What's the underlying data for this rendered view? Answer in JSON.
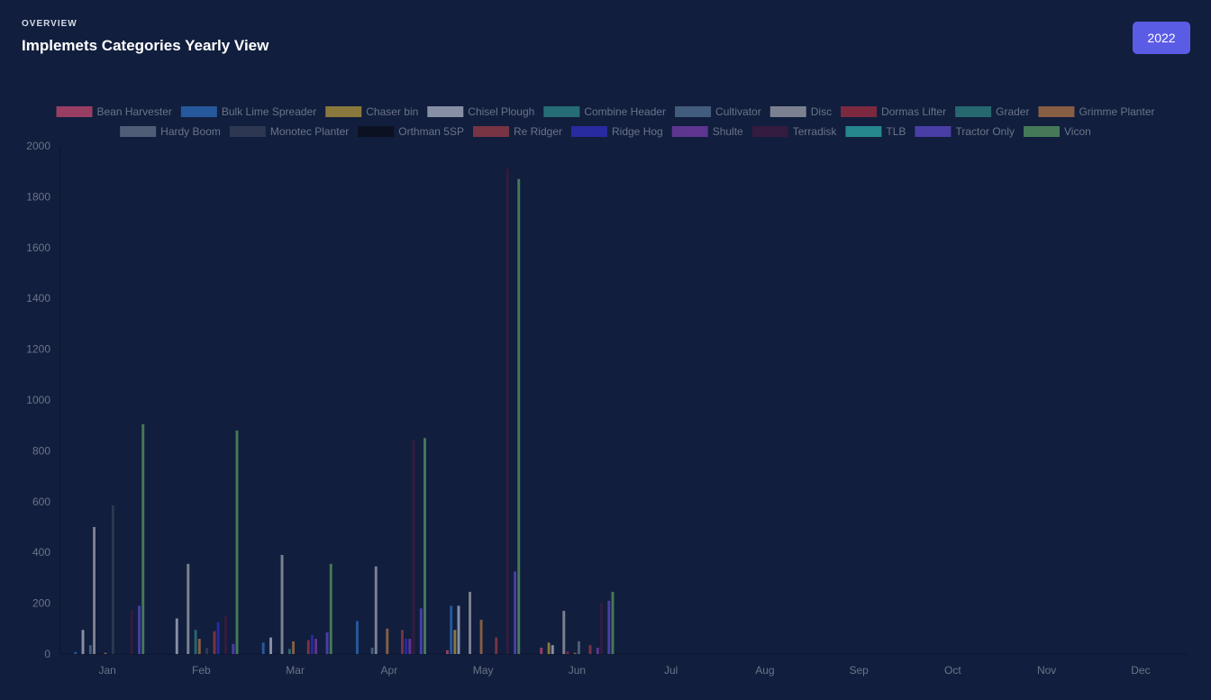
{
  "header": {
    "overline": "OVERVIEW",
    "title": "Implemets Categories Yearly View",
    "year_button": "2022"
  },
  "chart_data": {
    "type": "bar",
    "categories": [
      "Jan",
      "Feb",
      "Mar",
      "Apr",
      "May",
      "Jun",
      "Jul",
      "Aug",
      "Sep",
      "Oct",
      "Nov",
      "Dec"
    ],
    "ylim": [
      0,
      2000
    ],
    "yticks": [
      0,
      200,
      400,
      600,
      800,
      1000,
      1200,
      1400,
      1600,
      1800,
      2000
    ],
    "grid": false,
    "legend_position": "top",
    "series": [
      {
        "name": "Bean Harvester",
        "color": "#b0446a",
        "values": [
          0,
          0,
          0,
          0,
          15,
          25,
          0,
          0,
          0,
          0,
          0,
          0
        ]
      },
      {
        "name": "Bulk Lime Spreader",
        "color": "#2a63ad",
        "values": [
          8,
          0,
          45,
          130,
          190,
          0,
          0,
          0,
          0,
          0,
          0,
          0
        ]
      },
      {
        "name": "Chaser bin",
        "color": "#a08a3c",
        "values": [
          0,
          0,
          0,
          0,
          95,
          45,
          0,
          0,
          0,
          0,
          0,
          0
        ]
      },
      {
        "name": "Chisel Plough",
        "color": "#9ba3b7",
        "values": [
          95,
          140,
          65,
          0,
          190,
          35,
          0,
          0,
          0,
          0,
          0,
          0
        ]
      },
      {
        "name": "Combine Header",
        "color": "#2a7a80",
        "values": [
          0,
          0,
          0,
          0,
          0,
          0,
          0,
          0,
          0,
          0,
          0,
          0
        ]
      },
      {
        "name": "Cultivator",
        "color": "#4b6788",
        "values": [
          35,
          0,
          0,
          25,
          0,
          0,
          0,
          0,
          0,
          0,
          0,
          0
        ]
      },
      {
        "name": "Disc",
        "color": "#8f93a0",
        "values": [
          500,
          355,
          390,
          345,
          245,
          170,
          0,
          0,
          0,
          0,
          0,
          0
        ]
      },
      {
        "name": "Dormas Lifter",
        "color": "#8f2c40",
        "values": [
          0,
          0,
          0,
          0,
          0,
          10,
          0,
          0,
          0,
          0,
          0,
          0
        ]
      },
      {
        "name": "Grader",
        "color": "#2b7478",
        "values": [
          0,
          95,
          20,
          0,
          0,
          0,
          0,
          0,
          0,
          0,
          0,
          0
        ]
      },
      {
        "name": "Grimme Planter",
        "color": "#9a6a45",
        "values": [
          5,
          60,
          50,
          100,
          135,
          5,
          0,
          0,
          0,
          0,
          0,
          0
        ]
      },
      {
        "name": "Hardy Boom",
        "color": "#5b6880",
        "values": [
          0,
          0,
          0,
          0,
          0,
          50,
          0,
          0,
          0,
          0,
          0,
          0
        ]
      },
      {
        "name": "Monotec Planter",
        "color": "#323c55",
        "values": [
          585,
          25,
          0,
          0,
          0,
          0,
          0,
          0,
          0,
          0,
          0,
          0
        ]
      },
      {
        "name": "Orthman 5SP",
        "color": "#0c0f1c",
        "values": [
          0,
          0,
          0,
          0,
          0,
          0,
          0,
          0,
          0,
          0,
          0,
          0
        ]
      },
      {
        "name": "Re Ridger",
        "color": "#8a3844",
        "values": [
          0,
          90,
          55,
          95,
          65,
          35,
          0,
          0,
          0,
          0,
          0,
          0
        ]
      },
      {
        "name": "Ridge Hog",
        "color": "#2d2db0",
        "values": [
          0,
          125,
          75,
          60,
          0,
          0,
          0,
          0,
          0,
          0,
          0,
          0
        ]
      },
      {
        "name": "Shulte",
        "color": "#6c3aa0",
        "values": [
          0,
          0,
          60,
          60,
          0,
          25,
          0,
          0,
          0,
          0,
          0,
          0
        ]
      },
      {
        "name": "Terradisk",
        "color": "#3a1c40",
        "values": [
          170,
          150,
          0,
          840,
          1910,
          200,
          0,
          0,
          0,
          0,
          0,
          0
        ]
      },
      {
        "name": "TLB",
        "color": "#2a9a9e",
        "values": [
          0,
          0,
          0,
          0,
          0,
          0,
          0,
          0,
          0,
          0,
          0,
          0
        ]
      },
      {
        "name": "Tractor Only",
        "color": "#5444b8",
        "values": [
          190,
          40,
          85,
          180,
          325,
          210,
          0,
          0,
          0,
          0,
          0,
          0
        ]
      },
      {
        "name": "Vicon",
        "color": "#4f8a5c",
        "values": [
          905,
          880,
          355,
          850,
          1870,
          245,
          0,
          0,
          0,
          0,
          0,
          0
        ]
      }
    ]
  }
}
